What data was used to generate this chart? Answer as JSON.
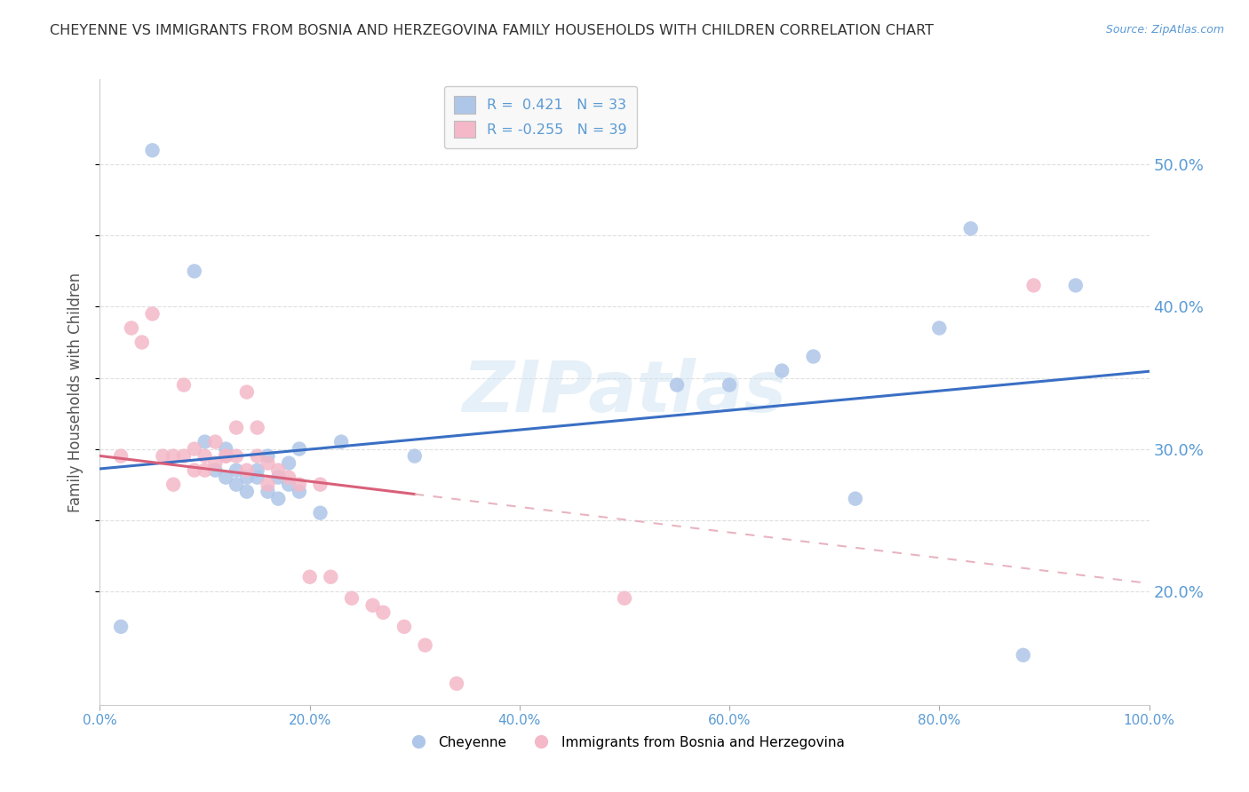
{
  "title": "CHEYENNE VS IMMIGRANTS FROM BOSNIA AND HERZEGOVINA FAMILY HOUSEHOLDS WITH CHILDREN CORRELATION CHART",
  "source": "Source: ZipAtlas.com",
  "ylabel": "Family Households with Children",
  "xlim": [
    0.0,
    1.0
  ],
  "ylim": [
    0.12,
    0.56
  ],
  "right_yticks": [
    0.2,
    0.3,
    0.4,
    0.5
  ],
  "right_ytick_labels": [
    "20.0%",
    "30.0%",
    "40.0%",
    "50.0%"
  ],
  "grid_yticks": [
    0.2,
    0.25,
    0.3,
    0.35,
    0.4,
    0.45,
    0.5
  ],
  "xticks": [
    0.0,
    0.2,
    0.4,
    0.6,
    0.8,
    1.0
  ],
  "xtick_labels": [
    "0.0%",
    "20.0%",
    "40.0%",
    "60.0%",
    "80.0%",
    "100.0%"
  ],
  "watermark": "ZIPatlas",
  "blue_color": "#aec6e8",
  "pink_color": "#f4b8c8",
  "blue_line_color": "#3a6fc4",
  "pink_line_solid_color": "#d9607a",
  "pink_line_dashed_color": "#e8b4c0",
  "legend_blue_label": "R =  0.421   N = 33",
  "legend_pink_label": "R = -0.255   N = 39",
  "blue_scatter_x": [
    0.02,
    0.05,
    0.09,
    0.1,
    0.11,
    0.12,
    0.12,
    0.13,
    0.13,
    0.14,
    0.14,
    0.15,
    0.15,
    0.16,
    0.16,
    0.17,
    0.17,
    0.18,
    0.18,
    0.19,
    0.19,
    0.21,
    0.23,
    0.3,
    0.55,
    0.6,
    0.65,
    0.68,
    0.72,
    0.8,
    0.83,
    0.88,
    0.93
  ],
  "blue_scatter_y": [
    0.175,
    0.51,
    0.425,
    0.305,
    0.285,
    0.3,
    0.28,
    0.285,
    0.275,
    0.28,
    0.27,
    0.285,
    0.28,
    0.295,
    0.27,
    0.28,
    0.265,
    0.29,
    0.275,
    0.3,
    0.27,
    0.255,
    0.305,
    0.295,
    0.345,
    0.345,
    0.355,
    0.365,
    0.265,
    0.385,
    0.455,
    0.155,
    0.415
  ],
  "pink_scatter_x": [
    0.02,
    0.03,
    0.04,
    0.05,
    0.06,
    0.07,
    0.07,
    0.08,
    0.08,
    0.09,
    0.09,
    0.1,
    0.1,
    0.11,
    0.11,
    0.12,
    0.12,
    0.13,
    0.13,
    0.14,
    0.14,
    0.15,
    0.15,
    0.16,
    0.16,
    0.17,
    0.18,
    0.19,
    0.2,
    0.21,
    0.22,
    0.24,
    0.26,
    0.27,
    0.29,
    0.31,
    0.34,
    0.5,
    0.89
  ],
  "pink_scatter_y": [
    0.295,
    0.385,
    0.375,
    0.395,
    0.295,
    0.295,
    0.275,
    0.345,
    0.295,
    0.3,
    0.285,
    0.285,
    0.295,
    0.305,
    0.29,
    0.295,
    0.295,
    0.315,
    0.295,
    0.34,
    0.285,
    0.315,
    0.295,
    0.29,
    0.275,
    0.285,
    0.28,
    0.275,
    0.21,
    0.275,
    0.21,
    0.195,
    0.19,
    0.185,
    0.175,
    0.162,
    0.135,
    0.195,
    0.415
  ],
  "background_color": "#ffffff",
  "grid_color": "#d8d8d8",
  "title_color": "#333333",
  "axis_color": "#5b9bd5",
  "legend_box_color": "#f8f8f8",
  "pink_line_break_x": 0.3
}
